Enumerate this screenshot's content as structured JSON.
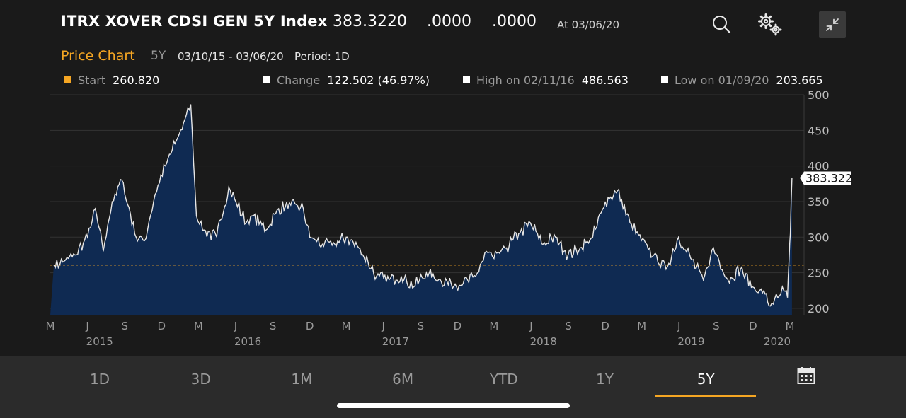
{
  "header": {
    "title": "ITRX XOVER CDSI GEN 5Y Index",
    "price": "383.3220",
    "change_abs": ".0000",
    "change_pct": ".0000",
    "as_of": "At 03/06/20"
  },
  "subheader": {
    "chart_label": "Price Chart",
    "range": "5Y",
    "dates": "03/10/15 - 03/06/20",
    "period": "Period: 1D"
  },
  "stats": {
    "start_label": "Start",
    "start_value": "260.820",
    "change_label": "Change",
    "change_value": "122.502 (46.97%)",
    "high_label": "High on 02/11/16",
    "high_value": "486.563",
    "low_label": "Low on 01/09/20",
    "low_value": "203.665"
  },
  "colors": {
    "accent": "#f5a623",
    "area_fill": "#0f2a52",
    "line": "#e6e6e6",
    "background": "#1a1a1a"
  },
  "chart_data": {
    "type": "area",
    "x_tick_labels": [
      "M",
      "J",
      "S",
      "D",
      "M",
      "J",
      "S",
      "D",
      "M",
      "J",
      "S",
      "D",
      "M",
      "J",
      "S",
      "D",
      "M",
      "J",
      "S",
      "D",
      "M"
    ],
    "year_labels": [
      "2015",
      "2016",
      "2017",
      "2018",
      "2019",
      "2020"
    ],
    "y_ticks": [
      200,
      250,
      300,
      350,
      400,
      450,
      500
    ],
    "ylim": [
      190,
      500
    ],
    "grid": true,
    "reference_line": {
      "value": 260.82,
      "label": "Start"
    },
    "last_value_label": "383.322",
    "series": [
      {
        "x": [
          "2015-03-10",
          "2015-04-01",
          "2015-05-01",
          "2015-06-01",
          "2015-06-20",
          "2015-07-10",
          "2015-08-01",
          "2015-08-25",
          "2015-09-29",
          "2015-10-20",
          "2015-11-15",
          "2015-12-10",
          "2016-01-10",
          "2016-02-11",
          "2016-02-25",
          "2016-03-15",
          "2016-04-15",
          "2016-05-15",
          "2016-06-27",
          "2016-07-15",
          "2016-08-15",
          "2016-09-15",
          "2016-10-15",
          "2016-11-15",
          "2016-12-01",
          "2017-01-01",
          "2017-02-01",
          "2017-03-01",
          "2017-04-01",
          "2017-04-24",
          "2017-05-15",
          "2017-06-15",
          "2017-07-15",
          "2017-08-15",
          "2017-09-15",
          "2017-10-15",
          "2017-11-15",
          "2017-12-15",
          "2018-01-15",
          "2018-02-10",
          "2018-03-01",
          "2018-04-01",
          "2018-05-01",
          "2018-05-30",
          "2018-06-30",
          "2018-07-31",
          "2018-08-31",
          "2018-09-30",
          "2018-10-31",
          "2018-12-01",
          "2018-12-31",
          "2019-01-31",
          "2019-02-28",
          "2019-03-31",
          "2019-04-30",
          "2019-05-31",
          "2019-06-30",
          "2019-07-31",
          "2019-08-25",
          "2019-09-30",
          "2019-10-31",
          "2019-11-30",
          "2019-12-31",
          "2020-01-09",
          "2020-01-31",
          "2020-02-15",
          "2020-02-24",
          "2020-02-28",
          "2020-03-02",
          "2020-03-06"
        ],
        "values": [
          260.8,
          265,
          275,
          300,
          340,
          280,
          350,
          380,
          300,
          295,
          360,
          400,
          440,
          486.6,
          330,
          310,
          300,
          370,
          320,
          330,
          310,
          340,
          345,
          340,
          300,
          290,
          290,
          300,
          285,
          265,
          245,
          240,
          245,
          230,
          250,
          240,
          235,
          235,
          245,
          280,
          270,
          285,
          305,
          320,
          290,
          300,
          275,
          285,
          300,
          350,
          365,
          320,
          295,
          275,
          255,
          300,
          270,
          240,
          285,
          240,
          255,
          230,
          220,
          203.7,
          215,
          225,
          215,
          270,
          305,
          383.3
        ]
      }
    ]
  },
  "footer": {
    "tabs": [
      "1D",
      "3D",
      "1M",
      "6M",
      "YTD",
      "1Y",
      "5Y"
    ],
    "active_tab": "5Y"
  }
}
